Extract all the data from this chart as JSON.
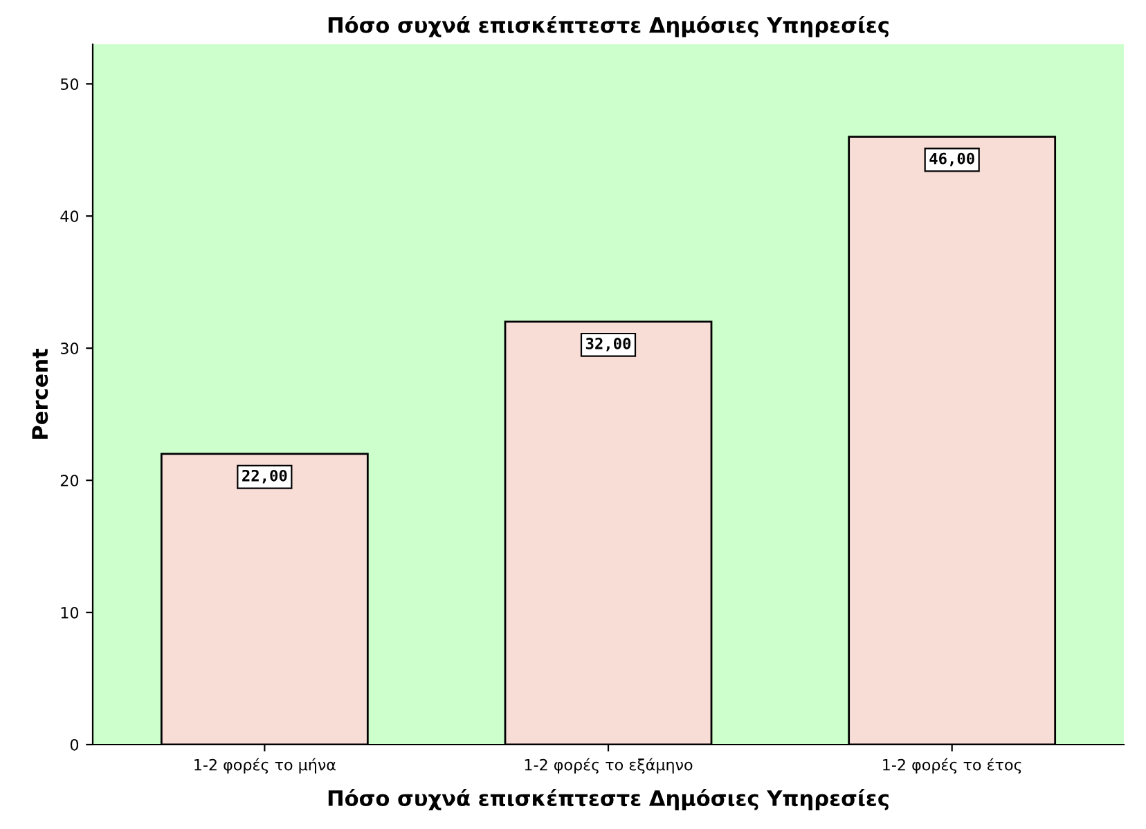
{
  "chart_data": {
    "type": "bar",
    "title": "Πόσο συχνά επισκέπτεστε Δημόσιες Υπηρεσίες",
    "xlabel": "Πόσο συχνά επισκέπτεστε Δημόσιες Υπηρεσίες",
    "ylabel": "Percent",
    "categories": [
      "1-2 φορές το μήνα",
      "1-2 φορές το εξάμηνο",
      "1-2 φορές το έτος"
    ],
    "values": [
      22,
      32,
      46
    ],
    "value_labels": [
      "22,00",
      "32,00",
      "46,00"
    ],
    "color": "#f8dcd6",
    "ylim": [
      0,
      53
    ],
    "yticks": [
      0,
      10,
      20,
      30,
      40,
      50
    ],
    "grid": false
  }
}
